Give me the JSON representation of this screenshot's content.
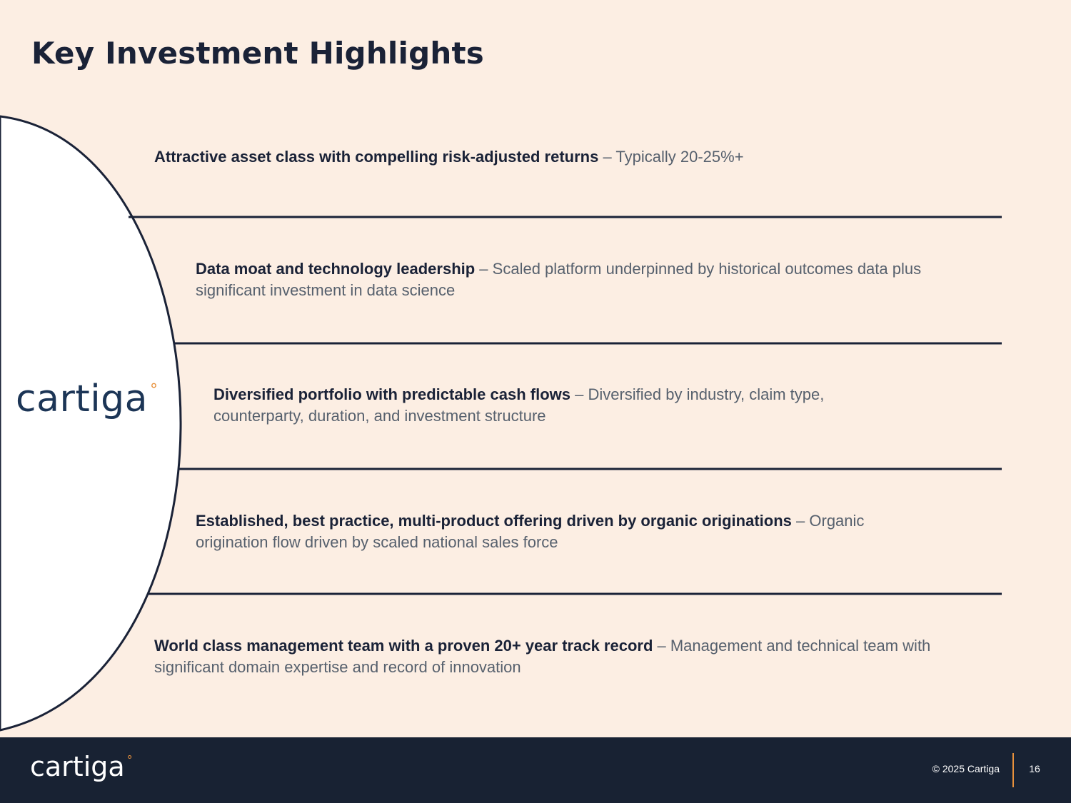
{
  "slide": {
    "title": "Key Investment Highlights",
    "logo_text": "cartiga",
    "logo_mark": "°"
  },
  "highlights": [
    {
      "heading": "Attractive asset class with compelling risk-adjusted returns",
      "separator": " – ",
      "detail": "Typically 20-25%+"
    },
    {
      "heading": "Data moat and technology leadership",
      "separator": " – ",
      "detail": "Scaled platform underpinned by historical outcomes data plus significant investment in data science"
    },
    {
      "heading": "Diversified portfolio with predictable cash flows",
      "separator": " – ",
      "detail": "Diversified by industry, claim type, counterparty, duration, and investment structure"
    },
    {
      "heading": "Established, best practice, multi-product offering driven by organic originations",
      "separator": " – ",
      "detail": "Organic origination flow driven by scaled national sales force"
    },
    {
      "heading": "World class management team with a proven 20+ year track record",
      "separator": " – ",
      "detail": "Management and technical team with significant domain expertise and record of innovation"
    }
  ],
  "footer": {
    "logo_text": "cartiga",
    "logo_mark": "°",
    "copyright": "© 2025 Cartiga",
    "page_number": "16"
  },
  "colors": {
    "background": "#FCEEE3",
    "navy": "#182233",
    "accent_orange": "#E8913C",
    "logo_blue": "#1C3556"
  }
}
